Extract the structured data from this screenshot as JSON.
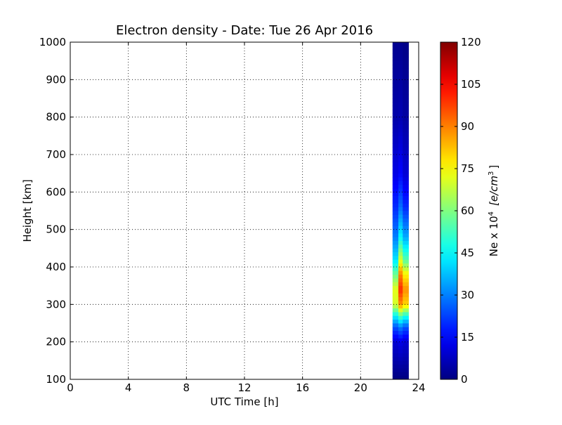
{
  "chart_data": {
    "type": "heatmap",
    "title": "Electron density - Date: Tue 26 Apr 2016",
    "xlabel": "UTC Time [h]",
    "ylabel": "Height [km]",
    "xlim": [
      0,
      24
    ],
    "ylim": [
      100,
      1000
    ],
    "xticks": [
      "0",
      "4",
      "8",
      "12",
      "16",
      "20",
      "24"
    ],
    "yticks": [
      "100",
      "200",
      "300",
      "400",
      "500",
      "600",
      "700",
      "800",
      "900",
      "1000"
    ],
    "grid": true,
    "colormap": "jet",
    "colorbar": {
      "label_prefix": "Ne x 10",
      "label_exponent": "4",
      "label_units": "[e/cm",
      "label_units_exponent": "3",
      "label_units_close": "]",
      "range": [
        0,
        120
      ],
      "ticks": [
        "0",
        "15",
        "30",
        "45",
        "60",
        "75",
        "90",
        "105",
        "120"
      ]
    },
    "data_time_range": [
      22.2,
      23.3
    ],
    "columns": [
      {
        "time_start": 22.2,
        "time_end": 22.6,
        "profile": [
          {
            "height": 100,
            "value": 0
          },
          {
            "height": 200,
            "value": 10
          },
          {
            "height": 240,
            "value": 25
          },
          {
            "height": 270,
            "value": 45
          },
          {
            "height": 300,
            "value": 70
          },
          {
            "height": 340,
            "value": 72
          },
          {
            "height": 380,
            "value": 58
          },
          {
            "height": 420,
            "value": 42
          },
          {
            "height": 480,
            "value": 30
          },
          {
            "height": 560,
            "value": 20
          },
          {
            "height": 650,
            "value": 12
          },
          {
            "height": 800,
            "value": 5
          },
          {
            "height": 1000,
            "value": 2
          }
        ]
      },
      {
        "time_start": 22.6,
        "time_end": 22.9,
        "profile": [
          {
            "height": 100,
            "value": 0
          },
          {
            "height": 200,
            "value": 12
          },
          {
            "height": 240,
            "value": 30
          },
          {
            "height": 270,
            "value": 55
          },
          {
            "height": 300,
            "value": 88
          },
          {
            "height": 340,
            "value": 100
          },
          {
            "height": 380,
            "value": 90
          },
          {
            "height": 420,
            "value": 70
          },
          {
            "height": 480,
            "value": 45
          },
          {
            "height": 560,
            "value": 28
          },
          {
            "height": 650,
            "value": 15
          },
          {
            "height": 800,
            "value": 6
          },
          {
            "height": 1000,
            "value": 2
          }
        ]
      },
      {
        "time_start": 22.9,
        "time_end": 23.3,
        "profile": [
          {
            "height": 100,
            "value": 0
          },
          {
            "height": 200,
            "value": 10
          },
          {
            "height": 240,
            "value": 25
          },
          {
            "height": 270,
            "value": 48
          },
          {
            "height": 300,
            "value": 80
          },
          {
            "height": 340,
            "value": 88
          },
          {
            "height": 380,
            "value": 76
          },
          {
            "height": 420,
            "value": 55
          },
          {
            "height": 480,
            "value": 35
          },
          {
            "height": 560,
            "value": 20
          },
          {
            "height": 650,
            "value": 10
          },
          {
            "height": 800,
            "value": 4
          },
          {
            "height": 1000,
            "value": 1
          }
        ]
      }
    ]
  }
}
